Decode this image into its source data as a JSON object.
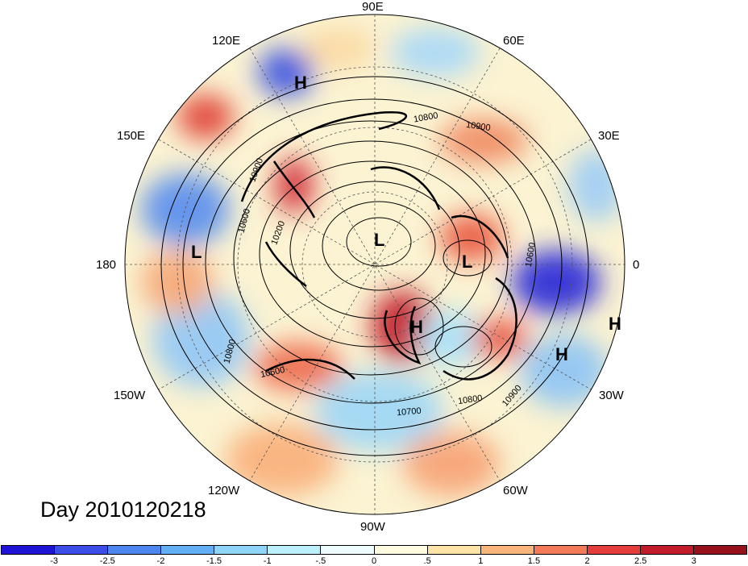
{
  "title": "Day 2010120218",
  "longitude_labels": {
    "lon_90e": "90E",
    "lon_60e": "60E",
    "lon_30e": "30E",
    "lon_0": "0",
    "lon_30w": "30W",
    "lon_60w": "60W",
    "lon_90w": "90W",
    "lon_120w": "120W",
    "lon_150w": "150W",
    "lon_180": "180",
    "lon_150e": "150E",
    "lon_120e": "120E"
  },
  "pressure_centers": {
    "h_120e": "H",
    "l_180": "L",
    "l_pole": "L",
    "l_0": "L",
    "h_atlantic": "H",
    "h_east": "H",
    "h_30w": "H"
  },
  "contour_labels": {
    "c1": "10800",
    "c2": "10900",
    "c3": "10900",
    "c4": "10600",
    "c5": "10200",
    "c6": "10800",
    "c7": "10600",
    "c8": "10800",
    "c9": "10900",
    "c10": "10700",
    "c11": "10600"
  },
  "colorbar": {
    "colors": [
      "#1f13d6",
      "#3b4ee8",
      "#4d86ef",
      "#63aff5",
      "#8fd4fb",
      "#bdf0fd",
      "#ecfcff",
      "#fffae0",
      "#fde3a6",
      "#f9b57b",
      "#f37a59",
      "#e43e3c",
      "#c21b2a",
      "#97111c"
    ],
    "tick_labels": [
      "-3",
      "-2.5",
      "-2",
      "-1.5",
      "-1",
      "-.5",
      "0",
      ".5",
      "1",
      "1.5",
      "2",
      "2.5",
      "3"
    ]
  }
}
